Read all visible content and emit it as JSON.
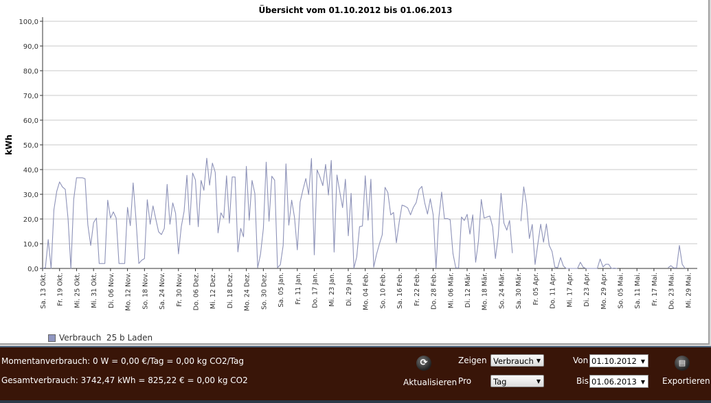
{
  "chart_data": {
    "type": "line",
    "title": "Übersicht vom 01.10.2012 bis 01.06.2013",
    "xlabel": "",
    "ylabel": "kWh",
    "ylim": [
      0,
      100
    ],
    "yticks": [
      "0,0",
      "10,0",
      "20,0",
      "30,0",
      "40,0",
      "50,0",
      "60,0",
      "70,0",
      "80,0",
      "90,0",
      "100,0"
    ],
    "grid": true,
    "x_start": "2012-10-13",
    "x_step_days": 1,
    "xtick_every_days": 6,
    "xticks": [
      "Sa. 13 Okt.",
      "Fr. 19 Okt.",
      "Mi. 25 Okt.",
      "Mi. 31 Okt.",
      "Di. 06 Nov.",
      "Mo. 12 Nov.",
      "So. 18 Nov.",
      "Sa. 24 Nov.",
      "Fr. 30 Nov.",
      "Do. 06 Dez.",
      "Mi. 12 Dez.",
      "Di. 18 Dez.",
      "Mo. 24 Dez.",
      "So. 30 Dez.",
      "Sa. 05 Jan.",
      "Fr. 11 Jan.",
      "Do. 17 Jan.",
      "Mi. 23 Jan.",
      "Di. 29 Jan.",
      "Mo. 04 Feb.",
      "So. 10 Feb.",
      "Sa. 16 Feb.",
      "Fr. 22 Feb.",
      "Do. 28 Feb.",
      "Mi. 06 Mär.",
      "Di. 12 Mär.",
      "Mo. 18 Mär.",
      "So. 24 Mär.",
      "Sa. 30 Mär.",
      "Fr. 05 Apr.",
      "Do. 11 Apr.",
      "Mi. 17 Apr.",
      "Di. 23 Apr.",
      "Mo. 29 Apr.",
      "So. 05 Mai.",
      "Sa. 11 Mai.",
      "Fr. 17 Mai.",
      "Do. 23 Mai.",
      "Mi. 29 Mai."
    ],
    "legend": "top-left-below",
    "series": [
      {
        "name": "Verbrauch  25 b Laden",
        "color": "#8d92b8",
        "values": [
          0,
          0.3,
          11.7,
          0,
          23.8,
          31.2,
          35,
          33,
          32,
          20,
          0,
          28,
          36.7,
          36.7,
          36.7,
          36.3,
          17.6,
          9.3,
          18.5,
          20.4,
          2,
          2,
          2,
          27.6,
          20.4,
          22.9,
          20.4,
          2,
          2,
          2,
          24.7,
          17.3,
          34.6,
          19.7,
          2,
          3.3,
          4,
          27.8,
          17.9,
          25.3,
          20,
          14.8,
          13.7,
          16.2,
          34,
          17.9,
          26.5,
          22.3,
          5.9,
          16.9,
          23.1,
          37.7,
          17.6,
          38.6,
          35.8,
          16.9,
          35.6,
          31.6,
          44.6,
          33.7,
          42.6,
          38.9,
          14.4,
          22.5,
          20.4,
          37.5,
          18.3,
          37,
          37,
          6.7,
          16.2,
          12.8,
          41.3,
          19.5,
          35.6,
          30.3,
          0.3,
          5.7,
          16.2,
          43,
          19.1,
          37.3,
          35.7,
          0.3,
          1.5,
          9.3,
          42.3,
          17.5,
          27.6,
          20.7,
          7.5,
          26.9,
          31.8,
          36.4,
          29.9,
          44.5,
          5.5,
          39.9,
          37,
          33.5,
          42.1,
          29.7,
          43.7,
          6.6,
          37.8,
          31,
          24.6,
          36.1,
          13.2,
          30.4,
          0.1,
          4.7,
          16.9,
          17.2,
          37.5,
          19.5,
          36.1,
          0.5,
          5.8,
          9.9,
          13.6,
          32.8,
          30.7,
          21.7,
          22.6,
          10.4,
          18.7,
          25.6,
          25.2,
          24.5,
          21.7,
          24.7,
          26.6,
          31.9,
          33.2,
          26.6,
          22,
          28.2,
          21.7,
          0.2,
          20.4,
          30.9,
          20.1,
          20.2,
          19.7,
          6,
          0.2,
          0.2,
          20.8,
          19.4,
          21.9,
          13.9,
          21.7,
          2.5,
          11.1,
          27.9,
          20.4,
          20.8,
          21.2,
          16.9,
          4,
          13.2,
          30.4,
          18.3,
          15.5,
          19.4,
          6.2,
          null,
          null,
          19.1,
          33,
          25.9,
          12.1,
          17.8,
          1.6,
          10,
          17.9,
          10.6,
          18,
          9.3,
          6.9,
          0.5,
          0.3,
          4.4,
          1,
          0,
          0,
          0,
          0,
          0,
          2.5,
          0.5,
          0,
          0,
          0,
          0,
          0,
          3.8,
          0.6,
          1.7,
          1.7,
          0,
          0.1,
          0,
          null,
          null,
          null,
          null,
          null,
          null,
          null,
          null,
          null,
          null,
          null,
          null,
          null,
          null,
          null,
          null,
          null,
          0.3,
          1.1,
          0.2,
          0.2,
          9.3,
          1.7,
          0
        ]
      }
    ]
  },
  "status": {
    "momentan": "Momentanverbrauch: 0 W = 0,00 €/Tag = 0,00 kg CO2/Tag",
    "gesamt": "Gesamtverbrauch: 3742,47 kWh = 825,22 € = 0,00 kg CO2"
  },
  "controls": {
    "refresh_label": "Aktualisieren",
    "zeigen_label": "Zeigen",
    "zeigen_value": "Verbrauch",
    "pro_label": "Pro",
    "pro_value": "Tag",
    "von_label": "Von",
    "von_value": "01.10.2012",
    "bis_label": "Bis",
    "bis_value": "01.06.2013",
    "export_label": "Exportieren"
  }
}
